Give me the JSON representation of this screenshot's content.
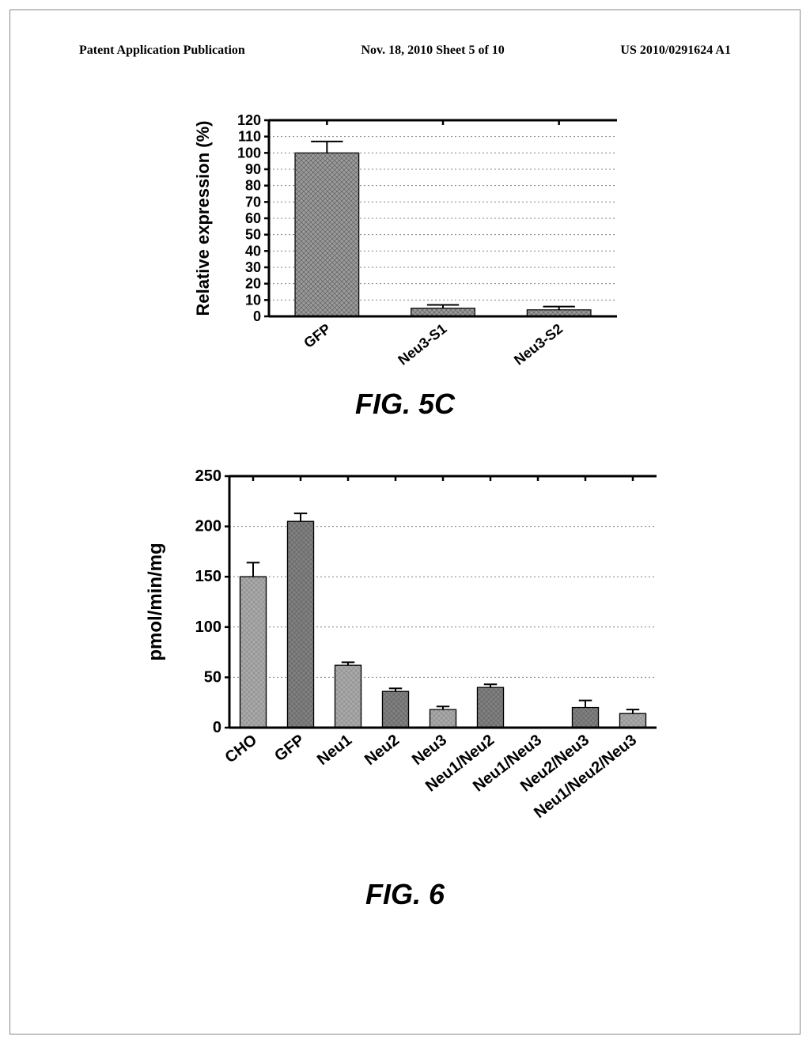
{
  "header": {
    "left": "Patent Application Publication",
    "center": "Nov. 18, 2010  Sheet 5 of 10",
    "right": "US 2010/0291624 A1"
  },
  "fig5c": {
    "label": "FIG. 5C",
    "type": "bar",
    "ylabel": "Relative expression (%)",
    "label_fontsize": 22,
    "tick_fontsize": 18,
    "axis_color": "#000000",
    "grid_color": "#808080",
    "ylim": [
      0,
      120
    ],
    "ytick_step": 10,
    "categories": [
      "GFP",
      "Neu3-S1",
      "Neu3-S2"
    ],
    "values": [
      100,
      5,
      4
    ],
    "errors": [
      7,
      2,
      2
    ],
    "bar_width": 0.55,
    "bar_fill": "#9a9a9a",
    "bar_border": "#000000",
    "hatch": "crosshatch",
    "background_color": "#ffffff"
  },
  "fig6": {
    "label": "FIG. 6",
    "type": "bar",
    "ylabel": "pmol/min/mg",
    "label_fontsize": 24,
    "tick_fontsize": 20,
    "axis_color": "#000000",
    "grid_color": "#808080",
    "ylim": [
      0,
      250
    ],
    "ytick_step": 50,
    "categories": [
      "CHO",
      "GFP",
      "Neu1",
      "Neu2",
      "Neu3",
      "Neu1/Neu2",
      "Neu1/Neu3",
      "Neu2/Neu3",
      "Neu1/Neu2/Neu3"
    ],
    "values": [
      150,
      205,
      62,
      36,
      18,
      40,
      0,
      20,
      14
    ],
    "errors": [
      14,
      8,
      3,
      3,
      3,
      3,
      0,
      7,
      4
    ],
    "bar_width": 0.55,
    "bar_fill": "#9a9a9a",
    "bar_border": "#000000",
    "tints": [
      0.72,
      0.4,
      0.72,
      0.4,
      0.72,
      0.4,
      0.72,
      0.4,
      0.72
    ],
    "background_color": "#ffffff"
  }
}
